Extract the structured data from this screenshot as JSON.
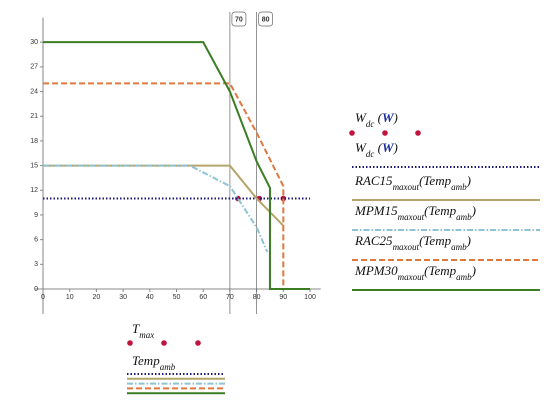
{
  "chart_data": {
    "type": "line",
    "xlim": [
      -3,
      104
    ],
    "ylim": [
      0,
      33
    ],
    "xticks": [
      0,
      10,
      20,
      30,
      40,
      50,
      60,
      70,
      80,
      90,
      100
    ],
    "yticks": [
      0,
      3,
      6,
      9,
      12,
      15,
      18,
      21,
      24,
      27,
      30
    ],
    "grid": false,
    "vmarkers": [
      70,
      80
    ],
    "series": [
      {
        "label_parts": [
          {
            "t": "W"
          },
          {
            "t": "dc",
            "sub": true
          },
          {
            "t": " ("
          },
          {
            "t": "W",
            "bold": true
          },
          {
            "t": ")"
          }
        ],
        "color": "#c0143c",
        "style": "points",
        "x": [
          73,
          81,
          90
        ],
        "values": [
          11,
          11,
          11
        ]
      },
      {
        "label_parts": [
          {
            "t": "W"
          },
          {
            "t": "dc",
            "sub": true
          },
          {
            "t": " ("
          },
          {
            "t": "W",
            "bold": true
          },
          {
            "t": ")"
          }
        ],
        "color": "#1a1a7a",
        "style": "dotted",
        "x": [
          0,
          100
        ],
        "values": [
          11,
          11
        ]
      },
      {
        "label_parts": [
          {
            "t": "RAC15"
          },
          {
            "t": "maxout",
            "sub": true
          },
          {
            "t": "(Temp"
          },
          {
            "t": "amb",
            "sub": true
          },
          {
            "t": ")"
          }
        ],
        "color": "#b5a56a",
        "style": "solid",
        "x": [
          0,
          70,
          80,
          90
        ],
        "values": [
          15,
          15,
          11,
          7.7
        ]
      },
      {
        "label_parts": [
          {
            "t": "MPM15"
          },
          {
            "t": "maxout",
            "sub": true
          },
          {
            "t": "(Temp"
          },
          {
            "t": "amb",
            "sub": true
          },
          {
            "t": ")"
          }
        ],
        "color": "#8ec3d6",
        "style": "dashdot",
        "x": [
          0,
          55,
          70,
          80,
          84
        ],
        "values": [
          15,
          15,
          12.5,
          7.5,
          4.5
        ]
      },
      {
        "label_parts": [
          {
            "t": "RAC25"
          },
          {
            "t": "maxout",
            "sub": true
          },
          {
            "t": "(Temp"
          },
          {
            "t": "amb",
            "sub": true
          },
          {
            "t": ")"
          }
        ],
        "color": "#e07840",
        "style": "dashed",
        "x": [
          0,
          70,
          80,
          90,
          90
        ],
        "values": [
          25,
          25,
          19,
          12.5,
          0
        ]
      },
      {
        "label_parts": [
          {
            "t": "MPM30"
          },
          {
            "t": "maxout",
            "sub": true
          },
          {
            "t": "(Temp"
          },
          {
            "t": "amb",
            "sub": true
          },
          {
            "t": ")"
          }
        ],
        "color": "#3a7d22",
        "style": "solid",
        "x": [
          0,
          60,
          70,
          80,
          85,
          85,
          100
        ],
        "values": [
          30,
          30,
          24,
          15.5,
          12.3,
          0,
          0
        ]
      }
    ],
    "x_legend": [
      {
        "label_parts": [
          {
            "t": "T"
          },
          {
            "t": "max",
            "sub": true
          }
        ]
      },
      {
        "label_parts": [
          {
            "t": "Temp"
          },
          {
            "t": "amb",
            "sub": true
          }
        ]
      }
    ]
  }
}
